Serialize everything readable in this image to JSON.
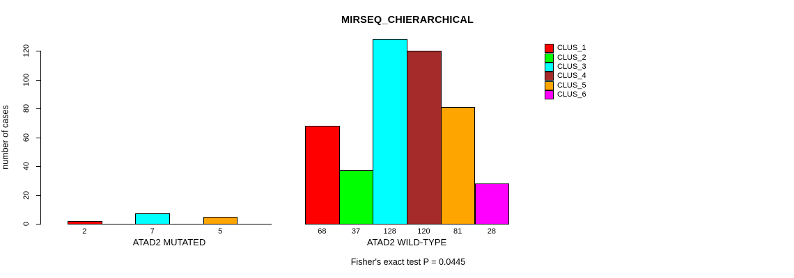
{
  "chart_data": {
    "type": "bar",
    "title": "MIRSEQ_CHIERARCHICAL",
    "ylabel": "number of cases",
    "xlabel": "",
    "footer": "Fisher's exact test P = 0.0445",
    "ylim": [
      0,
      120
    ],
    "yticks": [
      0,
      20,
      40,
      60,
      80,
      100,
      120
    ],
    "grid": false,
    "legend_position": "right",
    "series": [
      {
        "name": "CLUS_1",
        "color": "#FF0000"
      },
      {
        "name": "CLUS_2",
        "color": "#00FF00"
      },
      {
        "name": "CLUS_3",
        "color": "#00FFFF"
      },
      {
        "name": "CLUS_4",
        "color": "#A52A2A"
      },
      {
        "name": "CLUS_5",
        "color": "#FFA500"
      },
      {
        "name": "CLUS_6",
        "color": "#FF00FF"
      }
    ],
    "groups": [
      {
        "label": "ATAD2 MUTATED",
        "values": [
          2,
          0,
          7,
          0,
          5,
          0
        ],
        "shown_bar_labels": [
          "2",
          "7",
          "5"
        ]
      },
      {
        "label": "ATAD2 WILD-TYPE",
        "values": [
          68,
          37,
          128,
          120,
          81,
          28
        ],
        "shown_bar_labels": [
          "68",
          "37",
          "128",
          "120",
          "81",
          "28"
        ]
      }
    ],
    "note": "zero-value bars render as flat baseline segments with no number label"
  }
}
